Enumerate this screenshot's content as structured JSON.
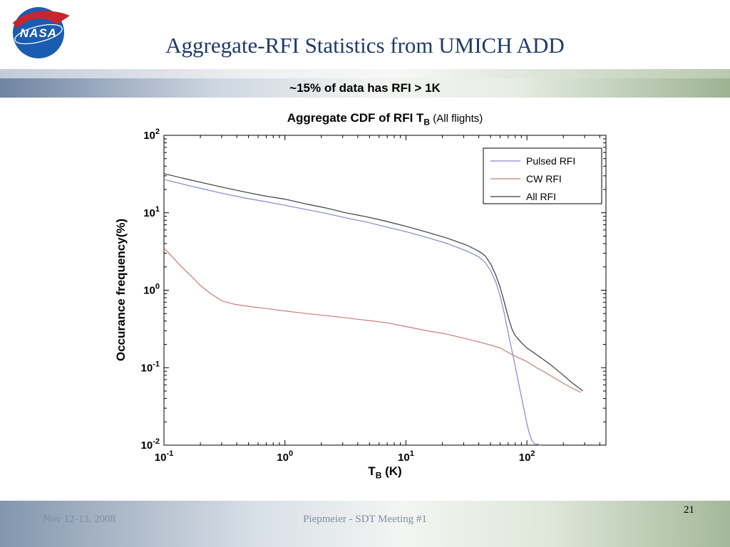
{
  "slide": {
    "logo_text": "NASA",
    "title": "Aggregate-RFI Statistics from UMICH ADD",
    "banner_text": "~15% of data has RFI > 1K",
    "footer": {
      "date": "Nov 12-13, 2008",
      "center_text": "Piepmeier - SDT Meeting #1",
      "page_number": "21"
    }
  },
  "chart_data": {
    "type": "line",
    "title": {
      "main": "Aggregate CDF of RFI T",
      "sub": "B",
      "suffix": "  (All flights)"
    },
    "xlabel": {
      "main": "T",
      "sub": "B",
      "suffix": " (K)"
    },
    "ylabel": "Occurance frequency(%)",
    "x_scale": "log",
    "y_scale": "log",
    "xlim": [
      0.1,
      450
    ],
    "ylim": [
      0.01,
      100
    ],
    "x_tick_exponents": [
      -1,
      0,
      1,
      2
    ],
    "y_tick_exponents": [
      2,
      1,
      0,
      -1,
      -2
    ],
    "grid": false,
    "legend": {
      "position": "top-right",
      "entries": [
        "Pulsed RFI",
        "CW RFI",
        "All RFI"
      ]
    },
    "series": [
      {
        "name": "Pulsed RFI",
        "color": "#8585d6",
        "points": [
          [
            0.1,
            27
          ],
          [
            0.15,
            23
          ],
          [
            0.22,
            20
          ],
          [
            0.32,
            17.5
          ],
          [
            0.47,
            15.5
          ],
          [
            0.68,
            14
          ],
          [
            1,
            12.5
          ],
          [
            1.5,
            11
          ],
          [
            2.2,
            9.8
          ],
          [
            3.2,
            8.6
          ],
          [
            4.7,
            7.6
          ],
          [
            6.8,
            6.6
          ],
          [
            10,
            5.7
          ],
          [
            15,
            4.8
          ],
          [
            22,
            4.0
          ],
          [
            32,
            3.2
          ],
          [
            40,
            2.7
          ],
          [
            45,
            2.3
          ],
          [
            50,
            1.8
          ],
          [
            55,
            1.3
          ],
          [
            60,
            0.85
          ],
          [
            65,
            0.5
          ],
          [
            70,
            0.28
          ],
          [
            75,
            0.17
          ],
          [
            80,
            0.105
          ],
          [
            85,
            0.065
          ],
          [
            90,
            0.042
          ],
          [
            95,
            0.028
          ],
          [
            100,
            0.019
          ],
          [
            105,
            0.014
          ],
          [
            110,
            0.0115
          ],
          [
            115,
            0.0105
          ],
          [
            125,
            0.0102
          ],
          [
            130,
            0.01
          ]
        ]
      },
      {
        "name": "CW RFI",
        "color": "#cf7a7a",
        "points": [
          [
            0.1,
            3.5
          ],
          [
            0.12,
            2.6
          ],
          [
            0.14,
            2.0
          ],
          [
            0.17,
            1.5
          ],
          [
            0.2,
            1.15
          ],
          [
            0.24,
            0.92
          ],
          [
            0.3,
            0.73
          ],
          [
            0.38,
            0.66
          ],
          [
            0.5,
            0.62
          ],
          [
            0.7,
            0.58
          ],
          [
            1,
            0.54
          ],
          [
            1.5,
            0.5
          ],
          [
            2.2,
            0.47
          ],
          [
            3.2,
            0.44
          ],
          [
            4.7,
            0.41
          ],
          [
            7,
            0.38
          ],
          [
            10,
            0.34
          ],
          [
            15,
            0.3
          ],
          [
            22,
            0.27
          ],
          [
            32,
            0.235
          ],
          [
            45,
            0.205
          ],
          [
            60,
            0.18
          ],
          [
            77,
            0.145
          ],
          [
            90,
            0.13
          ],
          [
            100,
            0.12
          ],
          [
            120,
            0.1
          ],
          [
            140,
            0.088
          ],
          [
            165,
            0.075
          ],
          [
            190,
            0.066
          ],
          [
            220,
            0.058
          ],
          [
            250,
            0.052
          ],
          [
            280,
            0.048
          ]
        ]
      },
      {
        "name": "All RFI",
        "color": "#3a3f3a",
        "points": [
          [
            0.1,
            32
          ],
          [
            0.15,
            27.5
          ],
          [
            0.22,
            24
          ],
          [
            0.32,
            21
          ],
          [
            0.47,
            18.5
          ],
          [
            0.68,
            16.5
          ],
          [
            1,
            15
          ],
          [
            1.5,
            13
          ],
          [
            2.2,
            11.5
          ],
          [
            3.2,
            10
          ],
          [
            4.7,
            8.9
          ],
          [
            6.8,
            7.8
          ],
          [
            10,
            6.7
          ],
          [
            15,
            5.6
          ],
          [
            22,
            4.7
          ],
          [
            32,
            3.8
          ],
          [
            40,
            3.2
          ],
          [
            45,
            2.8
          ],
          [
            50,
            2.2
          ],
          [
            55,
            1.6
          ],
          [
            60,
            1.1
          ],
          [
            65,
            0.7
          ],
          [
            70,
            0.45
          ],
          [
            75,
            0.32
          ],
          [
            80,
            0.26
          ],
          [
            90,
            0.21
          ],
          [
            100,
            0.18
          ],
          [
            115,
            0.155
          ],
          [
            130,
            0.135
          ],
          [
            150,
            0.115
          ],
          [
            175,
            0.095
          ],
          [
            200,
            0.08
          ],
          [
            230,
            0.066
          ],
          [
            260,
            0.057
          ],
          [
            290,
            0.05
          ]
        ]
      }
    ]
  }
}
